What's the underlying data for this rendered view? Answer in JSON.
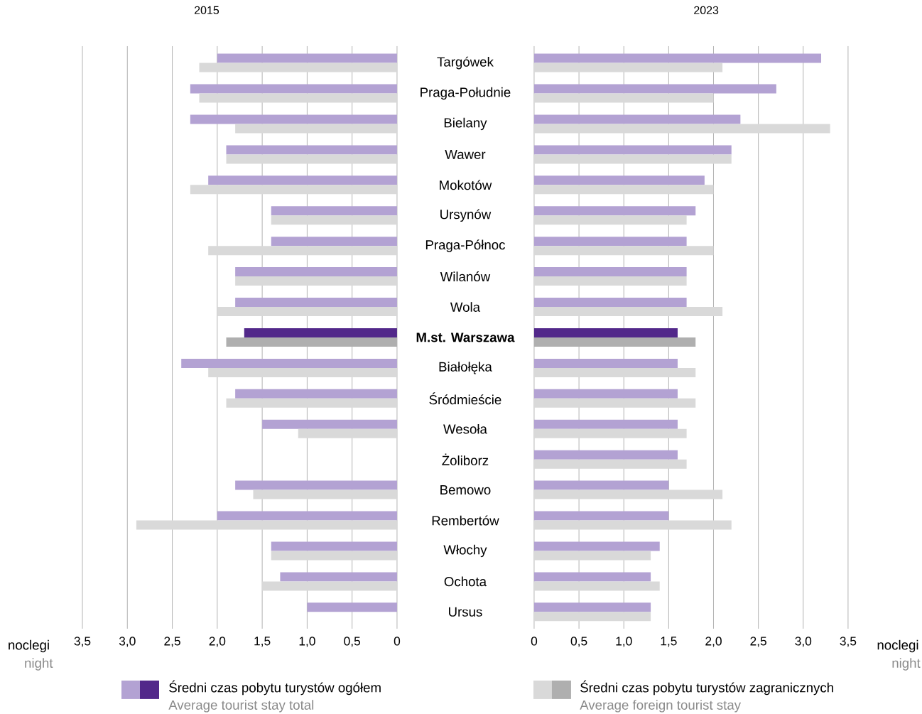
{
  "chart_data": [
    {
      "type": "bar",
      "orientation": "horizontal",
      "title": "2015",
      "xlabel": "noclegi",
      "annotations": [
        "night",
        "Average tourist stay total",
        "Average foreign tourist stay"
      ],
      "categories": [
        "Targówek",
        "Praga-Południe",
        "Bielany",
        "Wawer",
        "Mokotów",
        "Ursynów",
        "Praga-Północ",
        "Wilanów",
        "Wola",
        "M.st. Warszawa",
        "Białołęka",
        "Śródmieście",
        "Wesoła",
        "Żoliborz",
        "Bemowo",
        "Rembertów",
        "Włochy",
        "Ochota",
        "Ursus"
      ],
      "series": [
        {
          "name": "Średni czas pobytu turystów ogółem",
          "color": "#b3a2d3",
          "colors": [
            "#b3a2d3",
            "#b3a2d3",
            "#b3a2d3",
            "#b3a2d3",
            "#b3a2d3",
            "#b3a2d3",
            "#b3a2d3",
            "#b3a2d3",
            "#b3a2d3",
            "#52288a",
            "#b3a2d3",
            "#b3a2d3",
            "#b3a2d3",
            "#b3a2d3",
            "#b3a2d3",
            "#b3a2d3",
            "#b3a2d3",
            "#b3a2d3",
            "#b3a2d3"
          ],
          "values": [
            2.0,
            2.3,
            2.3,
            1.9,
            2.1,
            1.4,
            1.4,
            1.8,
            1.8,
            1.7,
            2.4,
            1.8,
            1.5,
            null,
            1.8,
            2.0,
            1.4,
            1.3,
            1.0
          ]
        },
        {
          "name": "Średni czas pobytu turystów zagranicznych",
          "color": "#d9d9d9",
          "colors": [
            "#d9d9d9",
            "#d9d9d9",
            "#d9d9d9",
            "#d9d9d9",
            "#d9d9d9",
            "#d9d9d9",
            "#d9d9d9",
            "#d9d9d9",
            "#d9d9d9",
            "#afafaf",
            "#d9d9d9",
            "#d9d9d9",
            "#d9d9d9",
            "#d9d9d9",
            "#d9d9d9",
            "#d9d9d9",
            "#d9d9d9",
            "#d9d9d9",
            "#d9d9d9"
          ],
          "values": [
            2.2,
            2.2,
            1.8,
            1.9,
            2.3,
            1.4,
            2.1,
            1.8,
            2.0,
            1.9,
            2.1,
            1.9,
            1.1,
            null,
            1.6,
            2.9,
            1.4,
            1.5,
            null
          ]
        }
      ],
      "xlim": [
        3.5,
        0
      ],
      "xticks": [
        {
          "value": 3.5,
          "label": "3,5"
        },
        {
          "value": 3.0,
          "label": "3,0"
        },
        {
          "value": 2.5,
          "label": "2,5"
        },
        {
          "value": 2.0,
          "label": "2,0"
        },
        {
          "value": 1.5,
          "label": "1,5"
        },
        {
          "value": 1.0,
          "label": "1,0"
        },
        {
          "value": 0.5,
          "label": "0,5"
        },
        0
      ],
      "grid": "x",
      "legend": "bottom"
    },
    {
      "type": "bar",
      "orientation": "horizontal",
      "title": "2023",
      "xlabel": "noclegi",
      "annotations": [
        "night"
      ],
      "categories": [
        null,
        null,
        null,
        null,
        null,
        null,
        null,
        null,
        null,
        null,
        null,
        null,
        null,
        null,
        null,
        null,
        null,
        null,
        null
      ],
      "series": [
        {
          "color": "#b3a2d3",
          "colors": [
            "#b3a2d3",
            "#b3a2d3",
            "#b3a2d3",
            "#b3a2d3",
            "#b3a2d3",
            "#b3a2d3",
            "#b3a2d3",
            "#b3a2d3",
            "#b3a2d3",
            "#52288a",
            "#b3a2d3",
            "#b3a2d3",
            "#b3a2d3",
            "#b3a2d3",
            "#b3a2d3",
            "#b3a2d3",
            "#b3a2d3",
            "#b3a2d3",
            "#b3a2d3"
          ],
          "values": [
            3.2,
            2.7,
            2.3,
            2.2,
            1.9,
            1.8,
            1.7,
            1.7,
            1.7,
            1.6,
            1.6,
            1.6,
            1.6,
            1.6,
            1.5,
            1.5,
            1.4,
            1.3,
            1.3
          ]
        },
        {
          "color": "#d9d9d9",
          "colors": [
            "#d9d9d9",
            "#d9d9d9",
            "#d9d9d9",
            "#d9d9d9",
            "#d9d9d9",
            "#d9d9d9",
            "#d9d9d9",
            "#d9d9d9",
            "#d9d9d9",
            "#afafaf",
            "#d9d9d9",
            "#d9d9d9",
            "#d9d9d9",
            "#d9d9d9",
            "#d9d9d9",
            "#d9d9d9",
            "#d9d9d9",
            "#d9d9d9",
            "#d9d9d9"
          ],
          "values": [
            2.1,
            2.0,
            3.3,
            2.2,
            2.0,
            1.7,
            2.0,
            1.7,
            2.1,
            1.8,
            1.8,
            1.8,
            1.7,
            1.7,
            2.1,
            2.2,
            1.3,
            1.4,
            1.3
          ]
        }
      ],
      "xlim": [
        0,
        3.5
      ],
      "xticks": [
        0,
        {
          "value": 0.5,
          "label": "0,5"
        },
        {
          "value": 1.0,
          "label": "1,0"
        },
        {
          "value": 1.5,
          "label": "1,5"
        },
        {
          "value": 2.0,
          "label": "2,0"
        },
        {
          "value": 2.5,
          "label": "2,5"
        },
        {
          "value": 3.0,
          "label": "3,0"
        },
        {
          "value": 3.5,
          "label": "3,5"
        }
      ],
      "grid": "x",
      "tick_labels": "x"
    }
  ]
}
